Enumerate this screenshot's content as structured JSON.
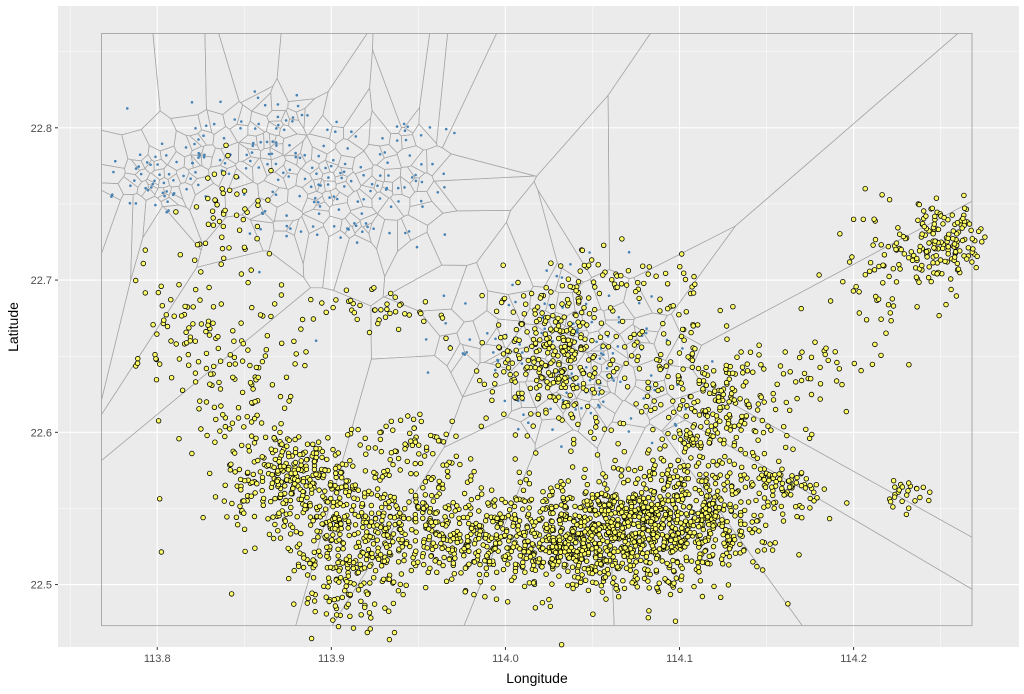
{
  "chart_data": {
    "type": "scatter",
    "title": "",
    "xlabel": "Longitude",
    "ylabel": "Latitude",
    "xlim": [
      113.743,
      114.295
    ],
    "ylim": [
      22.459,
      22.88
    ],
    "x_ticks": [
      113.8,
      113.9,
      114.0,
      114.1,
      114.2
    ],
    "x_tick_labels": [
      "113.8",
      "113.9",
      "114.0",
      "114.1",
      "114.2"
    ],
    "y_ticks": [
      22.5,
      22.6,
      22.7,
      22.8
    ],
    "y_tick_labels": [
      "22.5",
      "22.6",
      "22.7",
      "22.8"
    ],
    "grid": true,
    "legend": "none",
    "bounding_box": {
      "xmin": 113.768,
      "xmax": 114.268,
      "ymin": 22.473,
      "ymax": 22.862
    },
    "voronoi_sites": {
      "description": "blue site points forming a Voronoi tessellation (grey edges)",
      "color": "#4682b4",
      "clusters": [
        {
          "center": [
            113.8,
            22.765
          ],
          "spread": [
            0.018,
            0.012
          ],
          "count": 45
        },
        {
          "center": [
            113.86,
            22.79
          ],
          "spread": [
            0.03,
            0.02
          ],
          "count": 80
        },
        {
          "center": [
            113.93,
            22.765
          ],
          "spread": [
            0.025,
            0.025
          ],
          "count": 70
        },
        {
          "center": [
            113.89,
            22.74
          ],
          "spread": [
            0.02,
            0.015
          ],
          "count": 30
        },
        {
          "center": [
            114.03,
            22.66
          ],
          "spread": [
            0.03,
            0.025
          ],
          "count": 90
        },
        {
          "center": [
            114.06,
            22.63
          ],
          "spread": [
            0.025,
            0.02
          ],
          "count": 40
        }
      ]
    },
    "points": {
      "description": "yellow observation points with black outline",
      "fill": "#ffff66",
      "stroke": "#000000",
      "clusters": [
        {
          "center": [
            114.05,
            22.53
          ],
          "spread": [
            0.035,
            0.018
          ],
          "count": 700
        },
        {
          "center": [
            114.1,
            22.545
          ],
          "spread": [
            0.03,
            0.02
          ],
          "count": 550
        },
        {
          "center": [
            113.91,
            22.53
          ],
          "spread": [
            0.018,
            0.025
          ],
          "count": 300
        },
        {
          "center": [
            113.88,
            22.57
          ],
          "spread": [
            0.02,
            0.015
          ],
          "count": 250
        },
        {
          "center": [
            114.03,
            22.65
          ],
          "spread": [
            0.02,
            0.025
          ],
          "count": 320
        },
        {
          "center": [
            114.12,
            22.61
          ],
          "spread": [
            0.025,
            0.02
          ],
          "count": 220
        },
        {
          "center": [
            113.96,
            22.54
          ],
          "spread": [
            0.025,
            0.015
          ],
          "count": 200
        },
        {
          "center": [
            114.0,
            22.525
          ],
          "spread": [
            0.03,
            0.01
          ],
          "count": 150
        },
        {
          "center": [
            114.25,
            22.725
          ],
          "spread": [
            0.015,
            0.012
          ],
          "count": 150
        },
        {
          "center": [
            114.22,
            22.7
          ],
          "spread": [
            0.015,
            0.02
          ],
          "count": 60
        },
        {
          "center": [
            114.16,
            22.565
          ],
          "spread": [
            0.01,
            0.006
          ],
          "count": 60
        },
        {
          "center": [
            114.23,
            22.56
          ],
          "spread": [
            0.008,
            0.006
          ],
          "count": 25
        },
        {
          "center": [
            113.85,
            22.62
          ],
          "spread": [
            0.02,
            0.04
          ],
          "count": 120
        },
        {
          "center": [
            113.82,
            22.67
          ],
          "spread": [
            0.015,
            0.03
          ],
          "count": 70
        },
        {
          "center": [
            113.84,
            22.74
          ],
          "spread": [
            0.012,
            0.02
          ],
          "count": 50
        },
        {
          "center": [
            113.93,
            22.68
          ],
          "spread": [
            0.02,
            0.008
          ],
          "count": 40
        },
        {
          "center": [
            114.07,
            22.7
          ],
          "spread": [
            0.02,
            0.01
          ],
          "count": 50
        },
        {
          "center": [
            114.1,
            22.65
          ],
          "spread": [
            0.015,
            0.02
          ],
          "count": 60
        },
        {
          "center": [
            113.95,
            22.59
          ],
          "spread": [
            0.02,
            0.01
          ],
          "count": 60
        },
        {
          "center": [
            114.18,
            22.645
          ],
          "spread": [
            0.02,
            0.01
          ],
          "count": 30
        },
        {
          "center": [
            113.91,
            22.49
          ],
          "spread": [
            0.01,
            0.01
          ],
          "count": 30
        }
      ]
    }
  }
}
